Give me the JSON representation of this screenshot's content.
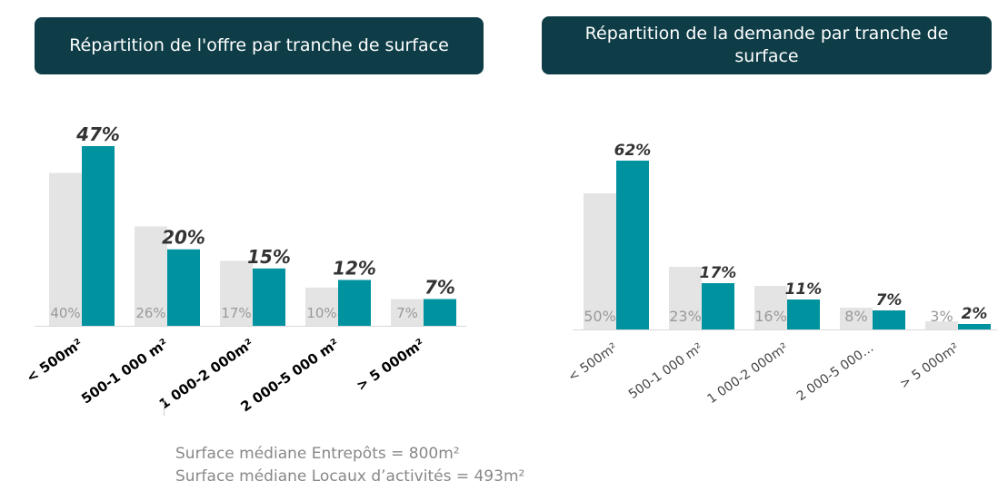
{
  "charts": {
    "left": {
      "title": "Répartition de l'offre par tranche de surface"
    },
    "right": {
      "title": "Répartition de la demande par tranche de surface"
    }
  },
  "notes": {
    "line1": "Surface médiane Entrepôts = 800m²",
    "line2": "Surface médiane Locaux d’activités = 493m²"
  },
  "colors": {
    "prior": "#e4e4e4",
    "current": "#00939f",
    "banner": "#0e3d47"
  },
  "chart_data": [
    {
      "type": "bar",
      "title": "Répartition de l'offre par tranche de surface",
      "categories": [
        "< 500m²",
        "500-1 000 m²",
        "1 000-2 000m²",
        "2 000-5 000 m²",
        "> 5 000m²"
      ],
      "series": [
        {
          "values": [
            40,
            26,
            17,
            10,
            7
          ],
          "labels": [
            "40%",
            "26%",
            "17%",
            "10%",
            "7%"
          ]
        },
        {
          "values": [
            47,
            20,
            15,
            12,
            7
          ],
          "labels": [
            "47%",
            "20%",
            "15%",
            "12%",
            "7%"
          ]
        }
      ],
      "ylim": [
        0,
        47
      ]
    },
    {
      "type": "bar",
      "title": "Répartition de la demande par tranche de surface",
      "categories": [
        "< 500m²",
        "500-1 000 m²",
        "1 000-2 000m²",
        "2 000-5 000…",
        "> 5 000m²"
      ],
      "series": [
        {
          "values": [
            50,
            23,
            16,
            8,
            3
          ],
          "labels": [
            "50%",
            "23%",
            "16%",
            "8%",
            "3%"
          ]
        },
        {
          "values": [
            62,
            17,
            11,
            7,
            2
          ],
          "labels": [
            "62%",
            "17%",
            "11%",
            "7%",
            "2%"
          ]
        }
      ],
      "ylim": [
        0,
        62
      ]
    }
  ]
}
